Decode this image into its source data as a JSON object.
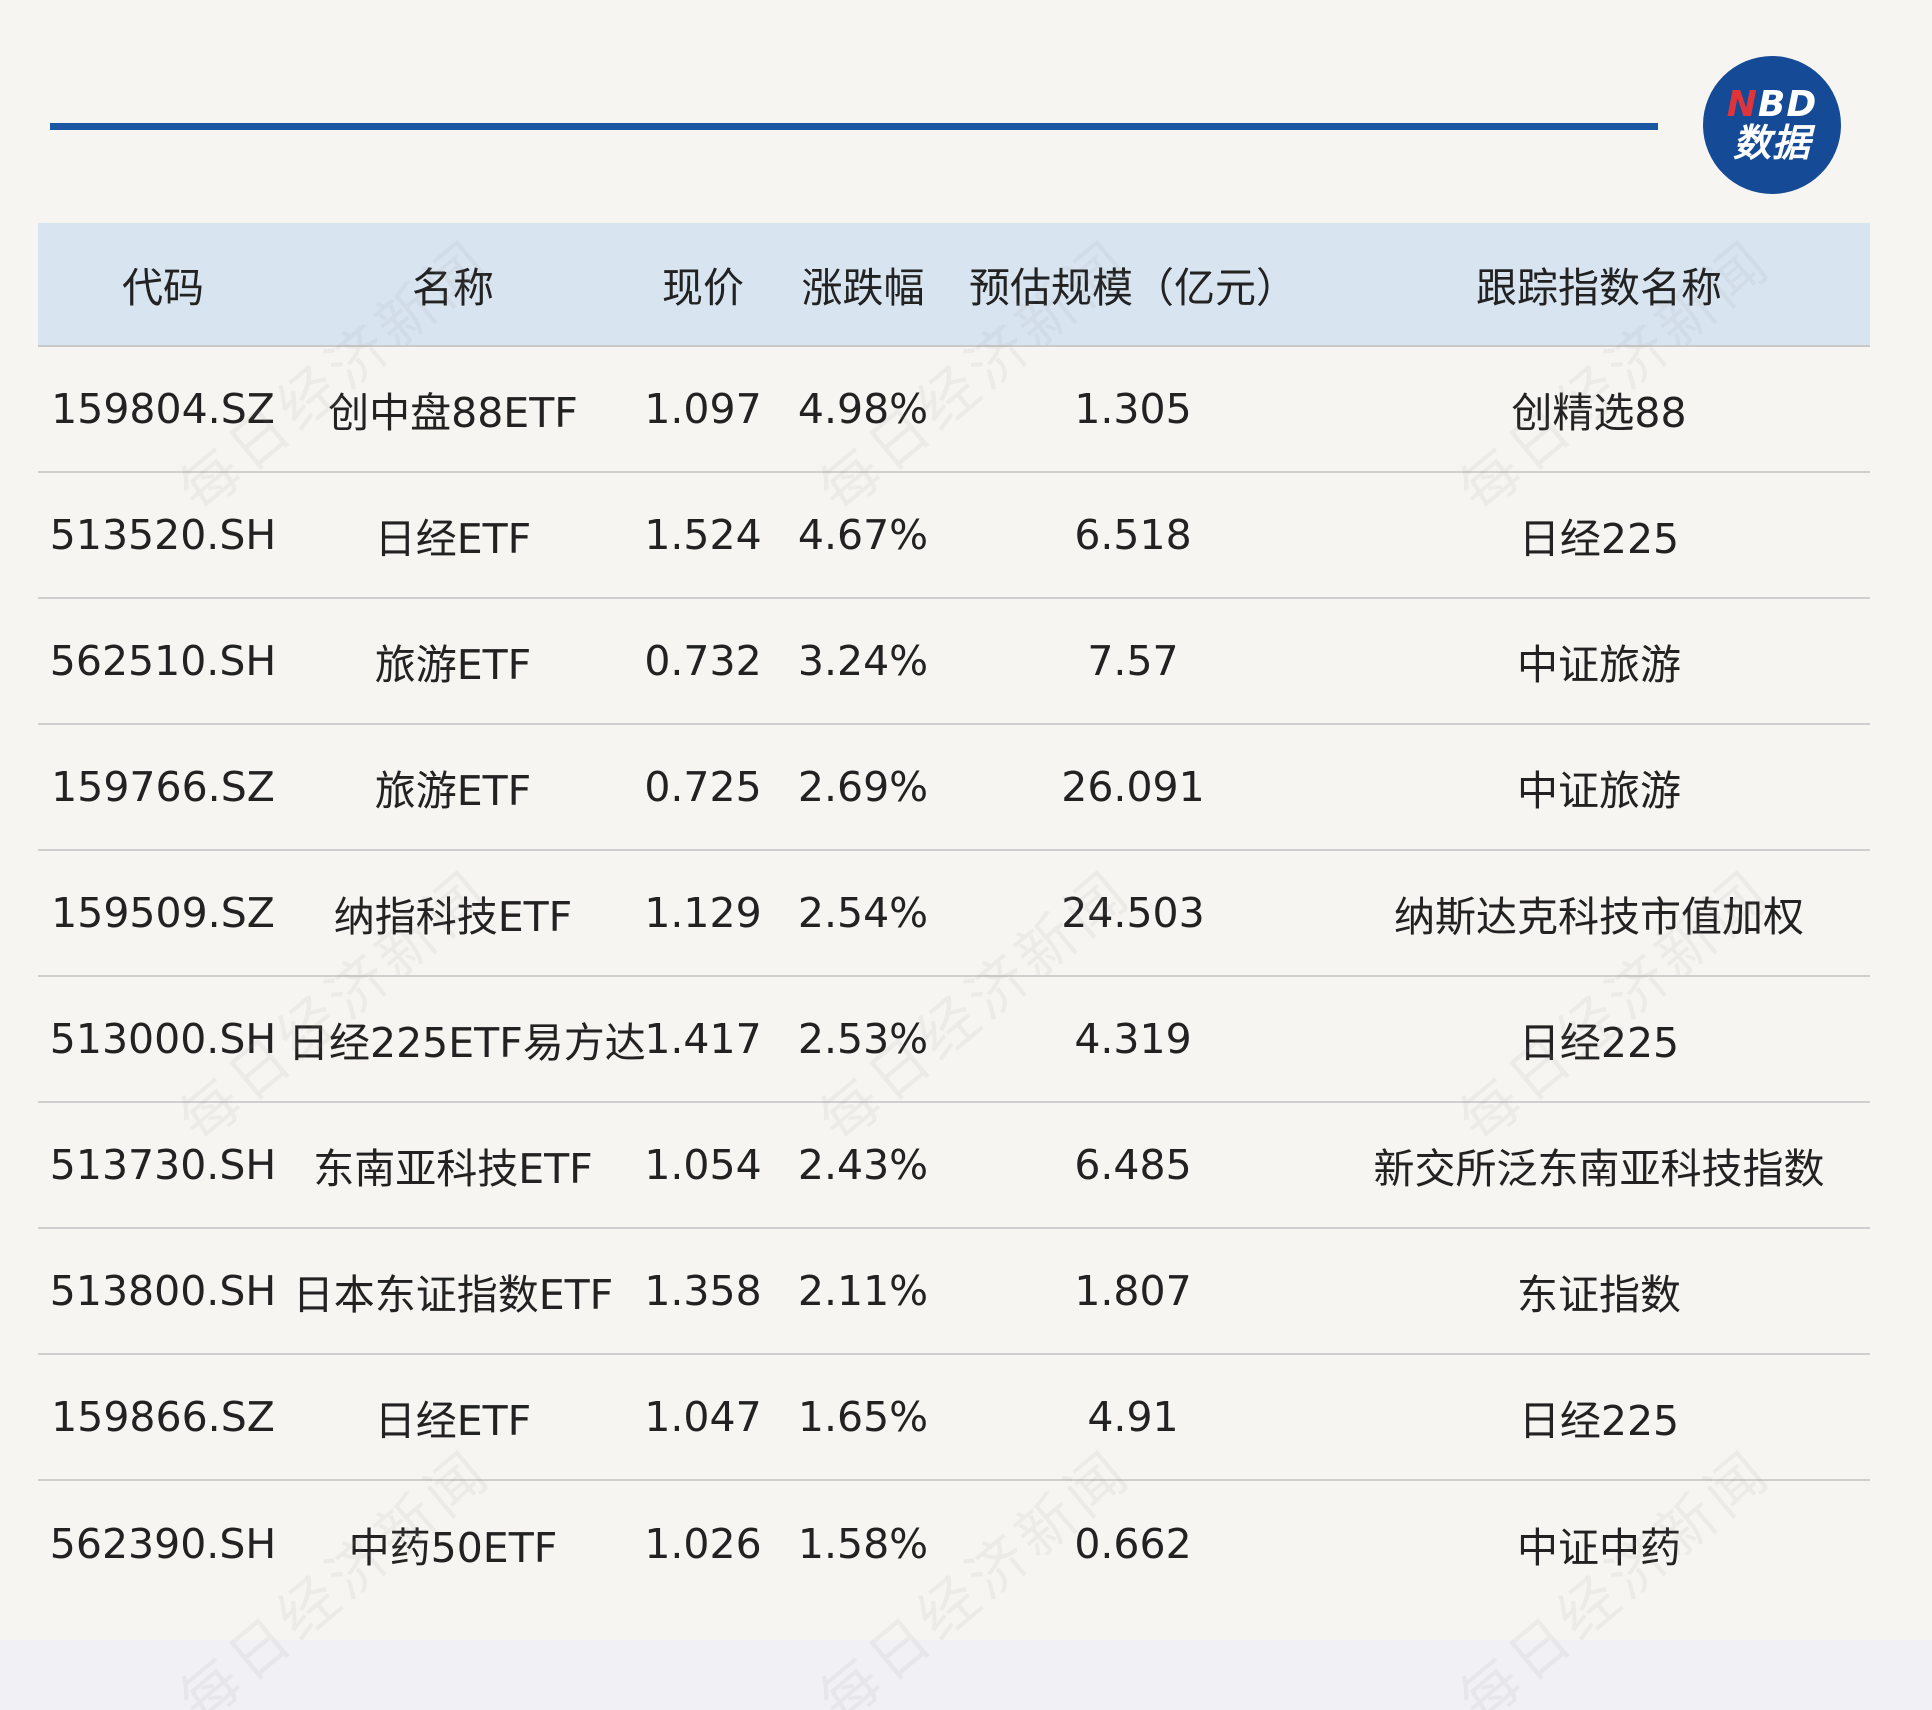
{
  "logo": {
    "line1_n": "N",
    "line1_rest": "BD",
    "line2": "数据"
  },
  "colors": {
    "rule": "#1b57a3",
    "header_bg": "#d8e5f1",
    "logo_bg": "#154a96",
    "logo_accent": "#e0343b"
  },
  "table": {
    "headers": [
      "代码",
      "名称",
      "现价",
      "涨跌幅",
      "预估规模（亿元）",
      "跟踪指数名称"
    ],
    "rows": [
      [
        "159804.SZ",
        "创中盘88ETF",
        "1.097",
        "4.98%",
        "1.305",
        "创精选88"
      ],
      [
        "513520.SH",
        "日经ETF",
        "1.524",
        "4.67%",
        "6.518",
        "日经225"
      ],
      [
        "562510.SH",
        "旅游ETF",
        "0.732",
        "3.24%",
        "7.57",
        "中证旅游"
      ],
      [
        "159766.SZ",
        "旅游ETF",
        "0.725",
        "2.69%",
        "26.091",
        "中证旅游"
      ],
      [
        "159509.SZ",
        "纳指科技ETF",
        "1.129",
        "2.54%",
        "24.503",
        "纳斯达克科技市值加权"
      ],
      [
        "513000.SH",
        "日经225ETF易方达",
        "1.417",
        "2.53%",
        "4.319",
        "日经225"
      ],
      [
        "513730.SH",
        "东南亚科技ETF",
        "1.054",
        "2.43%",
        "6.485",
        "新交所泛东南亚科技指数"
      ],
      [
        "513800.SH",
        "日本东证指数ETF",
        "1.358",
        "2.11%",
        "1.807",
        "东证指数"
      ],
      [
        "159866.SZ",
        "日经ETF",
        "1.047",
        "1.65%",
        "4.91",
        "日经225"
      ],
      [
        "562390.SH",
        "中药50ETF",
        "1.026",
        "1.58%",
        "0.662",
        "中证中药"
      ]
    ]
  },
  "watermark": "每日经济新闻"
}
